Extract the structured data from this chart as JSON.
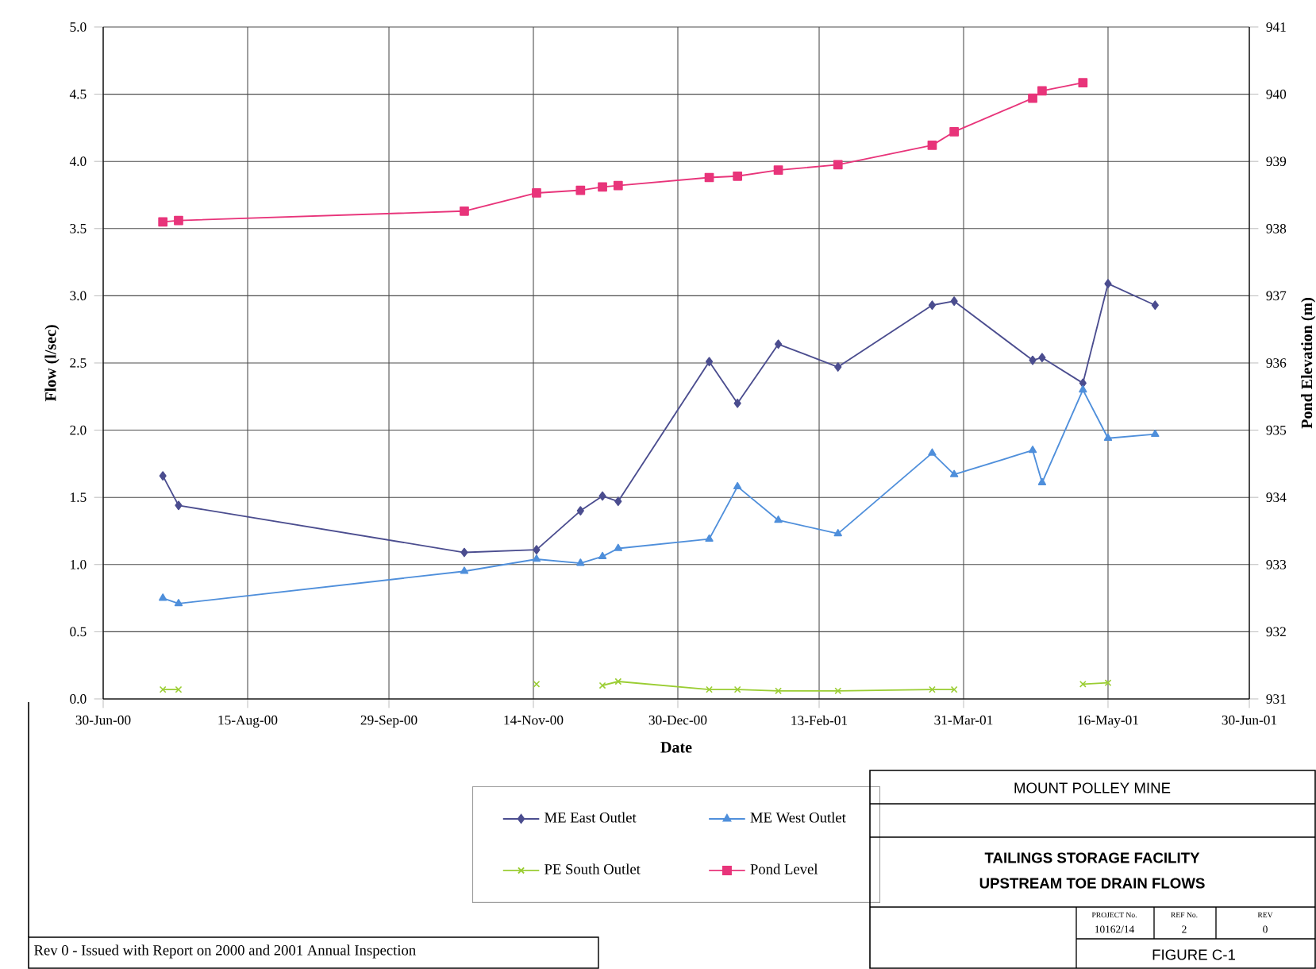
{
  "chart_data": {
    "type": "line",
    "title": "TAILINGS STORAGE FACILITY",
    "subtitle": "UPSTREAM TOE DRAIN FLOWS",
    "xlabel": "Date",
    "ylabel": "Flow (l/sec)",
    "y2label": "Pond Elevation (m)",
    "x": [
      "2000-07-19",
      "2000-07-24",
      "2000-10-23",
      "2000-11-15",
      "2000-11-29",
      "2000-12-06",
      "2000-12-11",
      "2001-01-09",
      "2001-01-18",
      "2001-01-31",
      "2001-02-19",
      "2001-03-21",
      "2001-03-28",
      "2001-04-22",
      "2001-04-25",
      "2001-05-08",
      "2001-05-16",
      "2001-05-31"
    ],
    "series": [
      {
        "name": "ME East Outlet",
        "color": "#4b4d8f",
        "marker": "diamond",
        "values": [
          1.66,
          1.44,
          1.09,
          1.11,
          1.4,
          1.51,
          1.47,
          2.51,
          2.2,
          2.64,
          2.47,
          2.93,
          2.96,
          2.52,
          2.54,
          2.35,
          3.09,
          2.93
        ]
      },
      {
        "name": "ME West Outlet",
        "color": "#4f8fdb",
        "marker": "triangle",
        "values": [
          0.75,
          0.71,
          0.95,
          1.04,
          1.01,
          1.06,
          1.12,
          1.19,
          1.58,
          1.33,
          1.23,
          1.83,
          1.67,
          1.85,
          1.61,
          2.3,
          1.94,
          1.97
        ]
      },
      {
        "name": "PE South Outlet",
        "color": "#9acd32",
        "marker": "cross",
        "values": [
          0.07,
          0.07,
          null,
          0.11,
          null,
          0.1,
          0.13,
          0.07,
          0.07,
          0.06,
          0.06,
          0.07,
          0.07,
          null,
          null,
          0.11,
          0.12,
          null
        ]
      },
      {
        "name": "Pond Level",
        "color": "#e8347a",
        "marker": "square",
        "axis": "y2",
        "values": [
          938.1,
          938.12,
          938.26,
          938.53,
          938.57,
          938.62,
          938.64,
          938.76,
          938.78,
          938.87,
          938.95,
          939.24,
          939.44,
          939.94,
          940.05,
          940.17,
          null,
          null
        ]
      }
    ],
    "xlim": [
      "2000-06-30",
      "2001-06-30"
    ],
    "xticks": [
      {
        "value": "2000-06-30",
        "label": "30-Jun-00"
      },
      {
        "value": "2000-08-15",
        "label": "15-Aug-00"
      },
      {
        "value": "2000-09-29",
        "label": "29-Sep-00"
      },
      {
        "value": "2000-11-14",
        "label": "14-Nov-00"
      },
      {
        "value": "2000-12-30",
        "label": "30-Dec-00"
      },
      {
        "value": "2001-02-13",
        "label": "13-Feb-01"
      },
      {
        "value": "2001-03-31",
        "label": "31-Mar-01"
      },
      {
        "value": "2001-05-16",
        "label": "16-May-01"
      },
      {
        "value": "2001-06-30",
        "label": "30-Jun-01"
      }
    ],
    "ylim": [
      0,
      5
    ],
    "yticks": [
      {
        "value": 0,
        "label": "0.0"
      },
      {
        "value": 0.5,
        "label": "0.5"
      },
      {
        "value": 1,
        "label": "1.0"
      },
      {
        "value": 1.5,
        "label": "1.5"
      },
      {
        "value": 2,
        "label": "2.0"
      },
      {
        "value": 2.5,
        "label": "2.5"
      },
      {
        "value": 3,
        "label": "3.0"
      },
      {
        "value": 3.5,
        "label": "3.5"
      },
      {
        "value": 4,
        "label": "4.0"
      },
      {
        "value": 4.5,
        "label": "4.5"
      },
      {
        "value": 5,
        "label": "5.0"
      }
    ],
    "y2lim": [
      931,
      941
    ],
    "y2ticks": [
      931,
      932,
      933,
      934,
      935,
      936,
      937,
      938,
      939,
      940,
      941
    ],
    "grid": true,
    "legend": "bottom",
    "annotations": [
      "MOUNT POLLEY MINE",
      "FIGURE C-1",
      "PROJECT No.",
      "10162/14",
      "REF No.",
      "2",
      "REV",
      "0",
      "Rev 0 - Issued with Report on 2000 and 2001 Annual Inspection"
    ]
  }
}
